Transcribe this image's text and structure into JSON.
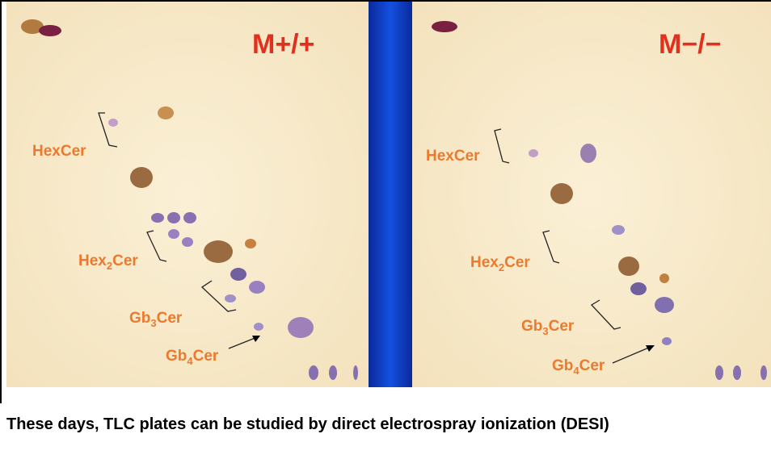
{
  "panels": [
    {
      "title": "M+/+",
      "labels": [
        {
          "base": "HexCer"
        },
        {
          "base": "Hex",
          "sub": "2",
          "rest": "Cer"
        },
        {
          "base": "Gb",
          "sub": "3",
          "rest": "Cer"
        },
        {
          "base": "Gb",
          "sub": "4",
          "rest": "Cer"
        }
      ]
    },
    {
      "title": "M−/−",
      "labels": [
        {
          "base": "HexCer"
        },
        {
          "base": "Hex",
          "sub": "2",
          "rest": "Cer"
        },
        {
          "base": "Gb",
          "sub": "3",
          "rest": "Cer"
        },
        {
          "base": "Gb",
          "sub": "4",
          "rest": "Cer"
        }
      ]
    }
  ],
  "caption": "These days, TLC plates can be studied by direct electrospray ionization (DESI)"
}
